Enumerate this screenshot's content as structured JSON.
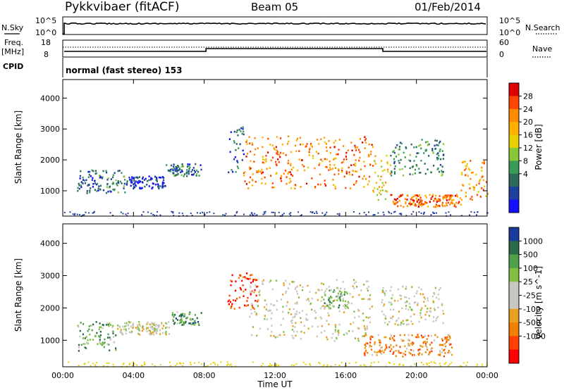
{
  "header": {
    "site": "Pykkvibaer (fitACF)",
    "beam": "Beam 05",
    "date": "01/Feb/2014"
  },
  "nsky_panel": {
    "left_label": "N.Sky",
    "right_label": "N.Search",
    "left_ticks": [
      "10^5",
      "10^0"
    ],
    "right_ticks": [
      "10^5",
      "10^0"
    ]
  },
  "freq_panel": {
    "left_label_1": "Freq.",
    "left_label_2": "[MHz]",
    "right_label": "Nave",
    "left_ticks": [
      "18",
      "8"
    ],
    "right_ticks": [
      "60",
      "0"
    ]
  },
  "cpid": {
    "label": "CPID",
    "text": "normal (fast stereo) 153"
  },
  "axes": {
    "ylabel": "Slant Range [km]",
    "xlabel": "Time UT",
    "x_ticks": [
      "00:00",
      "04:00",
      "08:00",
      "12:00",
      "16:00",
      "20:00",
      "00:00"
    ],
    "y_ticks": [
      "1000",
      "2000",
      "3000",
      "4000"
    ]
  },
  "chart_data": [
    {
      "type": "heatmap",
      "title": "Power",
      "colorbar_label": "Power [dB]",
      "colorbar_ticks": [
        "28",
        "24",
        "20",
        "16",
        "12",
        "8",
        "4"
      ],
      "colorbar_colors": [
        "#e00000",
        "#ff4500",
        "#ff8c00",
        "#ffb000",
        "#e8d000",
        "#88c838",
        "#3a9a58",
        "#2c6a5c",
        "#2040a0",
        "#1010ff"
      ],
      "xlim": [
        0,
        24
      ],
      "ylim": [
        180,
        4600
      ],
      "regions": [
        {
          "t": [
            0.8,
            3.5
          ],
          "r": [
            950,
            1700
          ],
          "level": 0.25
        },
        {
          "t": [
            3.5,
            5.8
          ],
          "r": [
            1100,
            1500
          ],
          "level": 0.1
        },
        {
          "t": [
            5.8,
            7.8
          ],
          "r": [
            1500,
            1900
          ],
          "level": 0.25
        },
        {
          "t": [
            9.3,
            10.2
          ],
          "r": [
            1600,
            3100
          ],
          "level": 0.2
        },
        {
          "t": [
            10.2,
            17.5
          ],
          "r": [
            1100,
            2800
          ],
          "level": 0.75
        },
        {
          "t": [
            17.5,
            18.5
          ],
          "r": [
            700,
            2200
          ],
          "level": 0.6
        },
        {
          "t": [
            18.5,
            22.5
          ],
          "r": [
            500,
            900
          ],
          "level": 0.8
        },
        {
          "t": [
            18.5,
            21.5
          ],
          "r": [
            1500,
            2700
          ],
          "level": 0.3
        },
        {
          "t": [
            22.5,
            24
          ],
          "r": [
            700,
            2000
          ],
          "level": 0.7
        }
      ]
    },
    {
      "type": "heatmap",
      "title": "Velocity",
      "colorbar_label": "Velocity [m s^-1]",
      "colorbar_ticks": [
        "1000",
        "500",
        "100",
        "25",
        "-25",
        "-100",
        "-500",
        "-1000"
      ],
      "colorbar_colors": [
        "#1a3a9c",
        "#2c6a4c",
        "#4fa24a",
        "#80c040",
        "#c8c8c0",
        "#c8c8c0",
        "#e8a020",
        "#f08000",
        "#ff4000",
        "#ff0000"
      ],
      "xlim": [
        0,
        24
      ],
      "ylim": [
        180,
        4600
      ],
      "regions": [
        {
          "t": [
            0.8,
            3.0
          ],
          "r": [
            700,
            1600
          ],
          "level": 0.7
        },
        {
          "t": [
            3.0,
            6.0
          ],
          "r": [
            1200,
            1600
          ],
          "level": 0.5
        },
        {
          "t": [
            6.0,
            7.8
          ],
          "r": [
            1500,
            1900
          ],
          "level": 0.75
        },
        {
          "t": [
            9.3,
            11.0
          ],
          "r": [
            2000,
            3100
          ],
          "level": 0.1
        },
        {
          "t": [
            10.5,
            17.5
          ],
          "r": [
            1000,
            2900
          ],
          "level": 0.5
        },
        {
          "t": [
            14.5,
            16.0
          ],
          "r": [
            2000,
            2600
          ],
          "level": 0.7
        },
        {
          "t": [
            17.0,
            22.0
          ],
          "r": [
            500,
            1200
          ],
          "level": 0.3
        },
        {
          "t": [
            18.0,
            21.5
          ],
          "r": [
            1500,
            2700
          ],
          "level": 0.5
        }
      ]
    }
  ]
}
